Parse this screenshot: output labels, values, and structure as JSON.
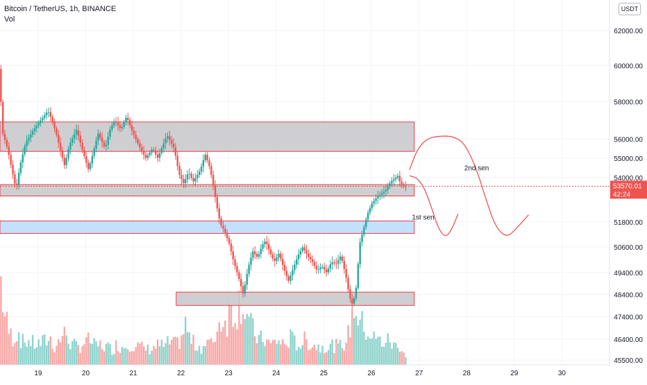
{
  "header": {
    "symbol_line": "Bitcoin / TetherUS, 1h, BINANCE",
    "volume_label": "Vol",
    "currency_badge": "USDT"
  },
  "colors": {
    "up": "#26a69a",
    "down": "#ef5350",
    "up_volume": "#8fd3cc",
    "down_volume": "#f7a9a7",
    "resistance_zone": "#c7c7c9",
    "support_zone": "#b8dcfb",
    "zone_border": "#f23645",
    "price_badge": "#ef5350",
    "grid": "#f0f3fa",
    "axis_text": "#131722"
  },
  "price_tag": {
    "price": "53570.01",
    "countdown": "42:24"
  },
  "chart_data": {
    "type": "candlestick",
    "title": "Bitcoin / TetherUS, 1h, BINANCE",
    "y_axis": {
      "scale": "log",
      "tick_labels": [
        "62000.00",
        "60000.00",
        "58000.00",
        "56000.00",
        "55000.00",
        "54000.00",
        "51800.00",
        "50600.00",
        "49400.00",
        "48400.00",
        "47400.00",
        "46400.00",
        "45500.00"
      ],
      "ylim": [
        45300,
        63800
      ]
    },
    "x_axis": {
      "tick_labels": [
        "19",
        "20",
        "21",
        "22",
        "23",
        "24",
        "25",
        "26",
        "27",
        "28",
        "29",
        "30"
      ],
      "xlim": [
        18.2,
        31.0
      ]
    },
    "grid": true,
    "price_path": [
      [
        18.22,
        59800
      ],
      [
        18.3,
        56300
      ],
      [
        18.4,
        55500
      ],
      [
        18.5,
        54300
      ],
      [
        18.58,
        53400
      ],
      [
        18.66,
        54600
      ],
      [
        18.78,
        55800
      ],
      [
        18.95,
        56500
      ],
      [
        19.1,
        57000
      ],
      [
        19.25,
        57500
      ],
      [
        19.33,
        57000
      ],
      [
        19.42,
        56300
      ],
      [
        19.5,
        55500
      ],
      [
        19.6,
        54600
      ],
      [
        19.7,
        55700
      ],
      [
        19.85,
        56500
      ],
      [
        19.95,
        55600
      ],
      [
        20.1,
        54400
      ],
      [
        20.2,
        55300
      ],
      [
        20.3,
        56300
      ],
      [
        20.45,
        55500
      ],
      [
        20.55,
        56500
      ],
      [
        20.65,
        57000
      ],
      [
        20.78,
        56500
      ],
      [
        20.9,
        57200
      ],
      [
        21.0,
        56500
      ],
      [
        21.15,
        55700
      ],
      [
        21.3,
        55000
      ],
      [
        21.45,
        55500
      ],
      [
        21.55,
        55000
      ],
      [
        21.65,
        55600
      ],
      [
        21.75,
        56200
      ],
      [
        21.9,
        55500
      ],
      [
        22.0,
        54200
      ],
      [
        22.1,
        53700
      ],
      [
        22.2,
        54300
      ],
      [
        22.3,
        53800
      ],
      [
        22.45,
        54400
      ],
      [
        22.55,
        55200
      ],
      [
        22.65,
        54500
      ],
      [
        22.72,
        53600
      ],
      [
        22.8,
        52500
      ],
      [
        22.87,
        51700
      ],
      [
        22.95,
        51400
      ],
      [
        23.05,
        50800
      ],
      [
        23.15,
        49900
      ],
      [
        23.25,
        49200
      ],
      [
        23.35,
        48400
      ],
      [
        23.45,
        49600
      ],
      [
        23.55,
        50400
      ],
      [
        23.65,
        50100
      ],
      [
        23.75,
        50700
      ],
      [
        23.82,
        50900
      ],
      [
        23.9,
        50400
      ],
      [
        24.0,
        49900
      ],
      [
        24.1,
        50300
      ],
      [
        24.2,
        49600
      ],
      [
        24.3,
        49000
      ],
      [
        24.4,
        49600
      ],
      [
        24.5,
        50200
      ],
      [
        24.6,
        50600
      ],
      [
        24.7,
        50200
      ],
      [
        24.8,
        49900
      ],
      [
        24.9,
        49500
      ],
      [
        25.0,
        49700
      ],
      [
        25.1,
        49400
      ],
      [
        25.2,
        49900
      ],
      [
        25.3,
        49800
      ],
      [
        25.4,
        50200
      ],
      [
        25.5,
        49300
      ],
      [
        25.58,
        48300
      ],
      [
        25.65,
        47900
      ],
      [
        25.72,
        48700
      ],
      [
        25.8,
        50800
      ],
      [
        25.88,
        51500
      ],
      [
        25.96,
        52200
      ],
      [
        26.05,
        52700
      ],
      [
        26.15,
        53000
      ],
      [
        26.25,
        53200
      ],
      [
        26.35,
        53400
      ],
      [
        26.45,
        53800
      ],
      [
        26.55,
        54000
      ],
      [
        26.6,
        54100
      ],
      [
        26.65,
        53700
      ],
      [
        26.72,
        53570
      ]
    ],
    "volume_path": [
      [
        18.22,
        38
      ],
      [
        18.3,
        22
      ],
      [
        18.4,
        14
      ],
      [
        18.5,
        12
      ],
      [
        18.58,
        16
      ],
      [
        18.66,
        10
      ],
      [
        18.78,
        11
      ],
      [
        18.95,
        9
      ],
      [
        19.1,
        10
      ],
      [
        19.25,
        12
      ],
      [
        19.33,
        8
      ],
      [
        19.42,
        10
      ],
      [
        19.5,
        13
      ],
      [
        19.6,
        14
      ],
      [
        19.7,
        9
      ],
      [
        19.85,
        8
      ],
      [
        19.95,
        10
      ],
      [
        20.1,
        11
      ],
      [
        20.2,
        8
      ],
      [
        20.3,
        9
      ],
      [
        20.45,
        8
      ],
      [
        20.55,
        7
      ],
      [
        20.65,
        9
      ],
      [
        20.78,
        8
      ],
      [
        20.9,
        10
      ],
      [
        21.0,
        9
      ],
      [
        21.15,
        8
      ],
      [
        21.3,
        7
      ],
      [
        21.45,
        8
      ],
      [
        21.55,
        9
      ],
      [
        21.65,
        8
      ],
      [
        21.75,
        10
      ],
      [
        21.9,
        9
      ],
      [
        22.0,
        12
      ],
      [
        22.1,
        18
      ],
      [
        22.2,
        11
      ],
      [
        22.3,
        9
      ],
      [
        22.45,
        8
      ],
      [
        22.55,
        10
      ],
      [
        22.65,
        9
      ],
      [
        22.72,
        14
      ],
      [
        22.8,
        18
      ],
      [
        22.87,
        22
      ],
      [
        22.95,
        19
      ],
      [
        23.05,
        26
      ],
      [
        23.15,
        24
      ],
      [
        23.25,
        30
      ],
      [
        23.35,
        26
      ],
      [
        23.45,
        18
      ],
      [
        23.55,
        14
      ],
      [
        23.65,
        11
      ],
      [
        23.75,
        12
      ],
      [
        23.82,
        10
      ],
      [
        23.9,
        9
      ],
      [
        24.0,
        11
      ],
      [
        24.1,
        10
      ],
      [
        24.2,
        9
      ],
      [
        24.3,
        12
      ],
      [
        24.4,
        10
      ],
      [
        24.5,
        9
      ],
      [
        24.6,
        11
      ],
      [
        24.7,
        10
      ],
      [
        24.8,
        9
      ],
      [
        24.9,
        8
      ],
      [
        25.0,
        9
      ],
      [
        25.1,
        8
      ],
      [
        25.2,
        9
      ],
      [
        25.3,
        8
      ],
      [
        25.4,
        9
      ],
      [
        25.5,
        12
      ],
      [
        25.58,
        20
      ],
      [
        25.65,
        28
      ],
      [
        25.72,
        22
      ],
      [
        25.8,
        18
      ],
      [
        25.88,
        16
      ],
      [
        25.96,
        14
      ],
      [
        26.05,
        12
      ],
      [
        26.15,
        11
      ],
      [
        26.25,
        10
      ],
      [
        26.35,
        11
      ],
      [
        26.45,
        9
      ],
      [
        26.55,
        8
      ],
      [
        26.6,
        9
      ],
      [
        26.65,
        7
      ],
      [
        26.72,
        4
      ]
    ],
    "zones": [
      {
        "name": "resistance-zone-upper",
        "type": "resistance",
        "x_start": 18.2,
        "x_end": 26.9,
        "y_low": 55350,
        "y_high": 56900
      },
      {
        "name": "resistance-zone-current",
        "type": "resistance",
        "x_start": 18.2,
        "x_end": 26.9,
        "y_low": 53080,
        "y_high": 53650
      },
      {
        "name": "support-zone-mid",
        "type": "support",
        "x_start": 18.2,
        "x_end": 26.9,
        "y_low": 51250,
        "y_high": 51850
      },
      {
        "name": "support-zone-low",
        "type": "resistance",
        "x_start": 21.9,
        "x_end": 26.9,
        "y_low": 47900,
        "y_high": 48500
      }
    ],
    "annotations": [
      {
        "label": "1st sen",
        "x": 26.85,
        "y": 51920
      },
      {
        "label": "2nd sen",
        "x": 27.95,
        "y": 54380
      }
    ],
    "scenario_paths": [
      [
        [
          26.8,
          54100
        ],
        [
          26.95,
          54000
        ],
        [
          27.1,
          53550
        ],
        [
          27.25,
          52600
        ],
        [
          27.4,
          51500
        ],
        [
          27.55,
          51050
        ],
        [
          27.68,
          51400
        ],
        [
          27.82,
          52200
        ]
      ],
      [
        [
          26.8,
          54400
        ],
        [
          26.95,
          55400
        ],
        [
          27.15,
          56000
        ],
        [
          27.4,
          56150
        ],
        [
          27.7,
          56150
        ],
        [
          27.95,
          55800
        ],
        [
          28.2,
          54500
        ],
        [
          28.42,
          52800
        ],
        [
          28.62,
          51500
        ],
        [
          28.85,
          51050
        ],
        [
          29.05,
          51500
        ],
        [
          29.3,
          52150
        ]
      ]
    ]
  }
}
